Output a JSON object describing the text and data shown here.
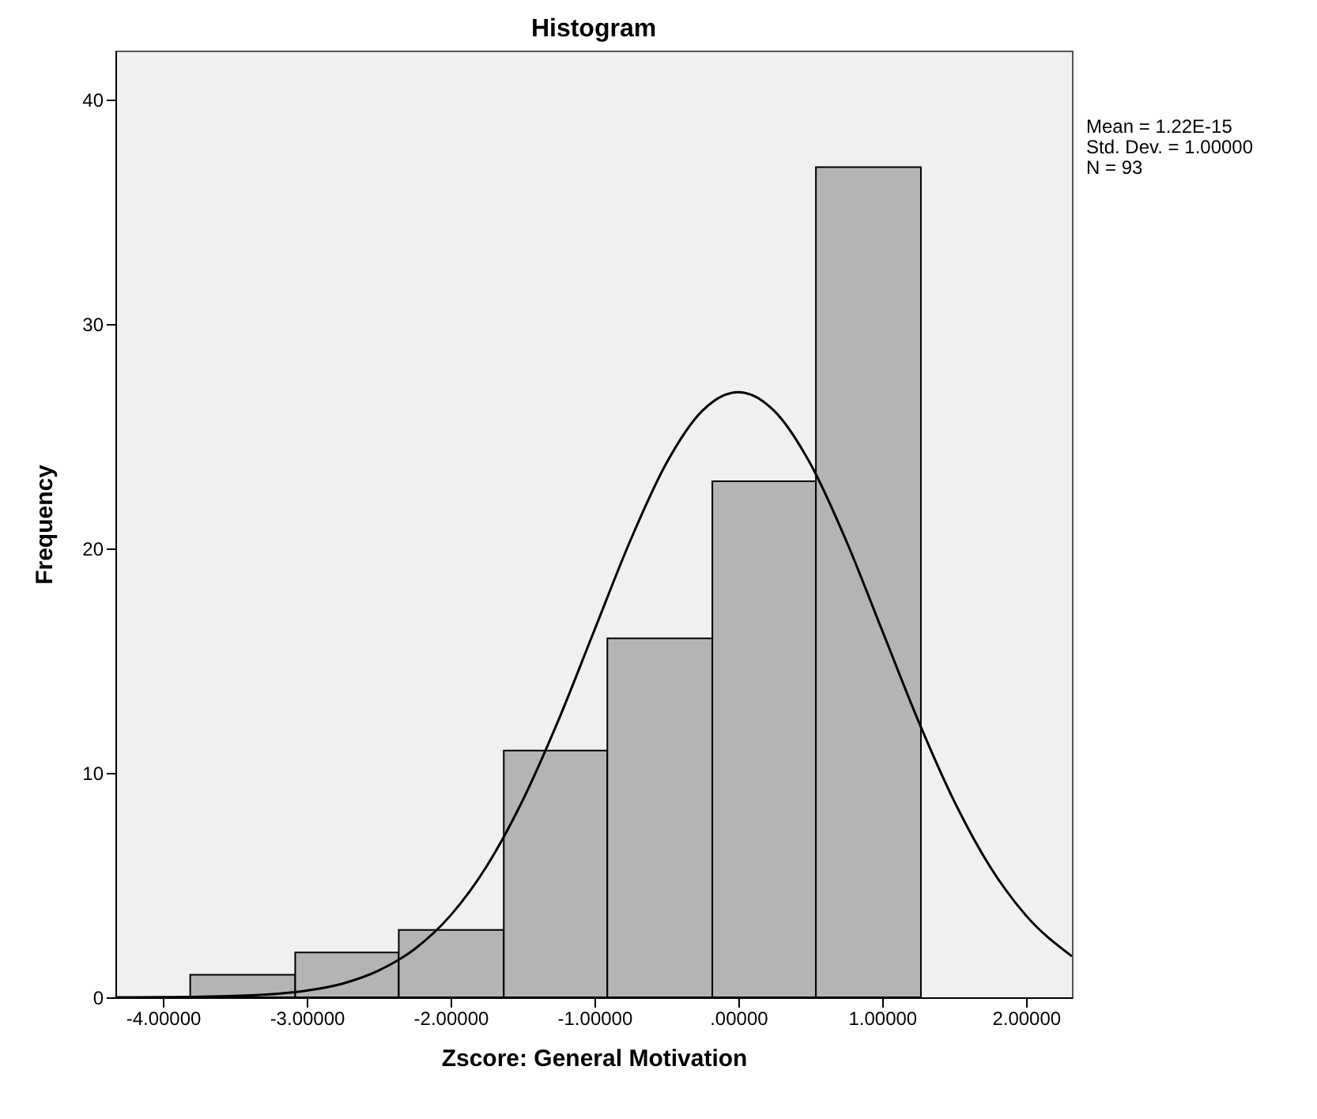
{
  "chart_data": {
    "type": "histogram",
    "title": "Histogram",
    "xlabel": "Zscore:  General Motivation",
    "ylabel": "Frequency",
    "bins": [
      -3.81,
      -3.08,
      -2.36,
      -1.63,
      -0.91,
      -0.18,
      0.54,
      1.27
    ],
    "values": [
      1,
      2,
      3,
      11,
      16,
      23,
      37
    ],
    "color": "#b4b4b4",
    "series": [
      {
        "type": "line",
        "color": "#000000",
        "x": [
          -4.33,
          -4,
          -3.5,
          -3,
          -2.75,
          -2.5,
          -2.25,
          -2,
          -1.75,
          -1.5,
          -1.25,
          -1,
          -0.75,
          -0.5,
          -0.25,
          0,
          0.25,
          0.5,
          0.75,
          1,
          1.25,
          1.5,
          1.75,
          2,
          2.32
        ],
        "values": [
          0,
          0.01,
          0.06,
          0.3,
          0.61,
          1.19,
          2.15,
          3.65,
          5.83,
          8.76,
          12.35,
          16.36,
          20.36,
          23.8,
          26.14,
          26.97,
          26.14,
          23.8,
          20.36,
          16.36,
          12.35,
          8.76,
          5.83,
          3.65,
          1.83
        ]
      }
    ],
    "xlim": [
      -4.33,
      2.32
    ],
    "xticks": [
      {
        "value": -4,
        "label": "-4.00000"
      },
      {
        "value": -3,
        "label": "-3.00000"
      },
      {
        "value": -2,
        "label": "-2.00000"
      },
      {
        "value": -1,
        "label": "-1.00000"
      },
      {
        "value": 0,
        "label": ".00000"
      },
      {
        "value": 1,
        "label": "1.00000"
      },
      {
        "value": 2,
        "label": "2.00000"
      }
    ],
    "ylim": [
      0,
      42.2
    ],
    "yticks": [
      0,
      10,
      20,
      30,
      40
    ],
    "grid": false,
    "annotations": [
      "Mean = 1.22E-15",
      "Std. Dev. = 1.00000",
      "N = 93"
    ]
  }
}
